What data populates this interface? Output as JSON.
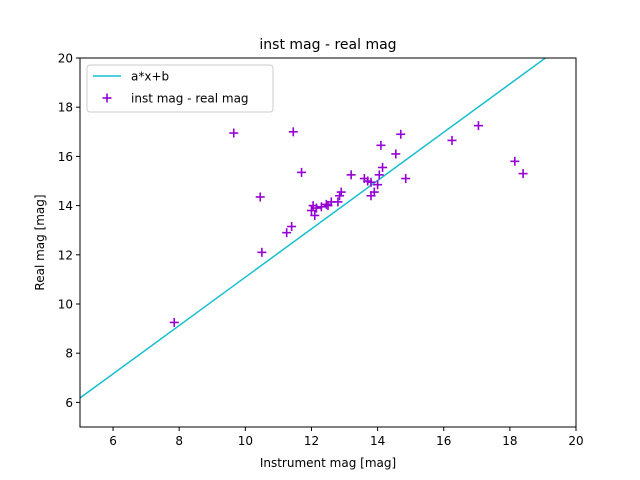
{
  "chart_data": {
    "type": "scatter",
    "title": "inst mag - real mag",
    "xlabel": "Instrument mag [mag]",
    "ylabel": "Real mag [mag]",
    "xlim": [
      5,
      20
    ],
    "ylim": [
      5,
      20
    ],
    "xticks": [
      6,
      8,
      10,
      12,
      14,
      16,
      18,
      20
    ],
    "yticks": [
      6,
      8,
      10,
      12,
      14,
      16,
      18,
      20
    ],
    "grid": false,
    "legend_position": "upper-left",
    "series": [
      {
        "name": "a*x+b",
        "kind": "line",
        "color": "#17becf",
        "slope": 0.982,
        "intercept": 1.27
      },
      {
        "name": "inst mag - real mag",
        "kind": "scatter",
        "marker": "plus",
        "color": "#9400d3",
        "points": [
          [
            7.85,
            9.25
          ],
          [
            9.65,
            16.95
          ],
          [
            10.45,
            14.35
          ],
          [
            10.5,
            12.1
          ],
          [
            11.25,
            12.9
          ],
          [
            11.4,
            13.15
          ],
          [
            11.45,
            17.0
          ],
          [
            11.7,
            15.35
          ],
          [
            12.0,
            13.8
          ],
          [
            12.05,
            14.0
          ],
          [
            12.1,
            13.6
          ],
          [
            12.15,
            13.9
          ],
          [
            12.3,
            13.95
          ],
          [
            12.45,
            14.05
          ],
          [
            12.5,
            14.0
          ],
          [
            12.6,
            14.15
          ],
          [
            12.8,
            14.15
          ],
          [
            12.85,
            14.4
          ],
          [
            12.9,
            14.55
          ],
          [
            13.2,
            15.25
          ],
          [
            13.6,
            15.1
          ],
          [
            13.7,
            15.0
          ],
          [
            13.8,
            14.95
          ],
          [
            13.8,
            14.4
          ],
          [
            13.9,
            14.55
          ],
          [
            14.0,
            14.85
          ],
          [
            14.05,
            15.25
          ],
          [
            14.1,
            16.45
          ],
          [
            14.15,
            15.55
          ],
          [
            14.55,
            16.1
          ],
          [
            14.7,
            16.9
          ],
          [
            14.85,
            15.1
          ],
          [
            16.25,
            16.65
          ],
          [
            17.05,
            17.25
          ],
          [
            18.15,
            15.8
          ],
          [
            18.4,
            15.3
          ]
        ]
      }
    ]
  }
}
